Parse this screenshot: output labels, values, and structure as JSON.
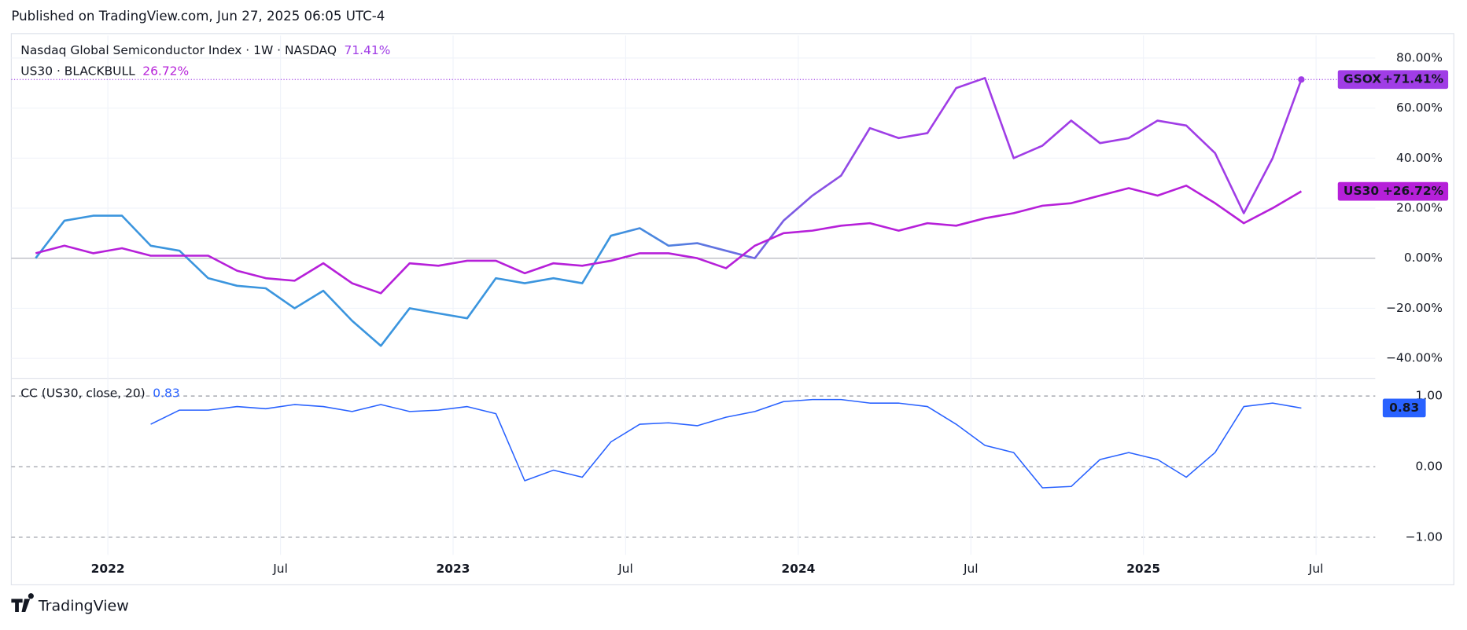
{
  "header": {
    "text": "Published on TradingView.com, Jun 27, 2025 06:05 UTC-4"
  },
  "footer": {
    "brand": "TradingView"
  },
  "chart_data": [
    {
      "type": "line",
      "x": [
        "2021-10",
        "2021-11",
        "2021-12",
        "2022-01",
        "2022-02",
        "2022-03",
        "2022-04",
        "2022-05",
        "2022-06",
        "2022-07",
        "2022-08",
        "2022-09",
        "2022-10",
        "2022-11",
        "2022-12",
        "2023-01",
        "2023-02",
        "2023-03",
        "2023-04",
        "2023-05",
        "2023-06",
        "2023-07",
        "2023-08",
        "2023-09",
        "2023-10",
        "2023-11",
        "2023-12",
        "2024-01",
        "2024-02",
        "2024-03",
        "2024-04",
        "2024-05",
        "2024-06",
        "2024-07",
        "2024-08",
        "2024-09",
        "2024-10",
        "2024-11",
        "2024-12",
        "2025-01",
        "2025-02",
        "2025-03",
        "2025-04",
        "2025-05",
        "2025-06"
      ],
      "series": [
        {
          "name": "Nasdaq Global Semiconductor Index · 1W · NASDAQ",
          "legend_value": "71.41%",
          "tag": "GSOX",
          "tag_value": "+71.41%",
          "color": "#a03de6",
          "gradient_from": "#3b95de",
          "values": [
            0,
            15,
            17,
            17,
            5,
            3,
            -8,
            -11,
            -12,
            -20,
            -13,
            -25,
            -35,
            -20,
            -22,
            -24,
            -8,
            -10,
            -8,
            -10,
            9,
            12,
            5,
            6,
            3,
            0,
            15,
            25,
            33,
            52,
            48,
            50,
            68,
            72,
            40,
            45,
            55,
            46,
            48,
            55,
            53,
            42,
            18,
            40,
            71.41
          ]
        },
        {
          "name": "US30 · BLACKBULL",
          "legend_value": "26.72%",
          "tag": "US30",
          "tag_value": "+26.72%",
          "color": "#b620d9",
          "values": [
            2,
            5,
            2,
            4,
            1,
            1,
            1,
            -5,
            -8,
            -9,
            -2,
            -10,
            -14,
            -2,
            -3,
            -1,
            -1,
            -6,
            -2,
            -3,
            -1,
            2,
            2,
            0,
            -4,
            5,
            10,
            11,
            13,
            14,
            11,
            14,
            13,
            16,
            18,
            21,
            22,
            25,
            28,
            25,
            29,
            22,
            14,
            20,
            26.72
          ]
        }
      ],
      "ylim": [
        -48,
        89
      ],
      "yticks": [
        {
          "value": 80,
          "label": "80.00%"
        },
        {
          "value": 60,
          "label": "60.00%"
        },
        {
          "value": 40,
          "label": "40.00%"
        },
        {
          "value": 20,
          "label": "20.00%"
        },
        {
          "value": 0,
          "label": "0.00%"
        },
        {
          "value": -20,
          "label": "−20.00%"
        },
        {
          "value": -40,
          "label": "−40.00%"
        }
      ],
      "grid": true
    },
    {
      "type": "line",
      "x": [
        "2021-10",
        "2021-11",
        "2021-12",
        "2022-01",
        "2022-02",
        "2022-03",
        "2022-04",
        "2022-05",
        "2022-06",
        "2022-07",
        "2022-08",
        "2022-09",
        "2022-10",
        "2022-11",
        "2022-12",
        "2023-01",
        "2023-02",
        "2023-03",
        "2023-04",
        "2023-05",
        "2023-06",
        "2023-07",
        "2023-08",
        "2023-09",
        "2023-10",
        "2023-11",
        "2023-12",
        "2024-01",
        "2024-02",
        "2024-03",
        "2024-04",
        "2024-05",
        "2024-06",
        "2024-07",
        "2024-08",
        "2024-09",
        "2024-10",
        "2024-11",
        "2024-12",
        "2025-01",
        "2025-02",
        "2025-03",
        "2025-04",
        "2025-05",
        "2025-06"
      ],
      "series": [
        {
          "name": "CC (US30, close, 20)",
          "legend_value": "0.83",
          "tag_value": "0.83",
          "color": "#2962ff",
          "values": [
            null,
            null,
            null,
            null,
            0.6,
            0.8,
            0.8,
            0.85,
            0.82,
            0.88,
            0.85,
            0.78,
            0.88,
            0.78,
            0.8,
            0.85,
            0.75,
            -0.2,
            -0.05,
            -0.15,
            0.35,
            0.6,
            0.62,
            0.58,
            0.7,
            0.78,
            0.92,
            0.95,
            0.95,
            0.9,
            0.9,
            0.85,
            0.6,
            0.3,
            0.2,
            -0.3,
            -0.28,
            0.1,
            0.2,
            0.1,
            -0.15,
            0.2,
            0.85,
            0.9,
            0.83
          ]
        }
      ],
      "ylim": [
        -1.25,
        1.25
      ],
      "yticks": [
        {
          "value": 1,
          "label": "1.00"
        },
        {
          "value": 0,
          "label": "0.00"
        },
        {
          "value": -1,
          "label": "−1.00"
        }
      ],
      "xticks": [
        {
          "value": "2022-01",
          "label": "2022"
        },
        {
          "value": "2022-07",
          "label": "Jul"
        },
        {
          "value": "2023-01",
          "label": "2023"
        },
        {
          "value": "2023-07",
          "label": "Jul"
        },
        {
          "value": "2024-01",
          "label": "2024"
        },
        {
          "value": "2024-07",
          "label": "Jul"
        },
        {
          "value": "2025-01",
          "label": "2025"
        },
        {
          "value": "2025-07",
          "label": "Jul"
        }
      ],
      "grid": true
    }
  ]
}
